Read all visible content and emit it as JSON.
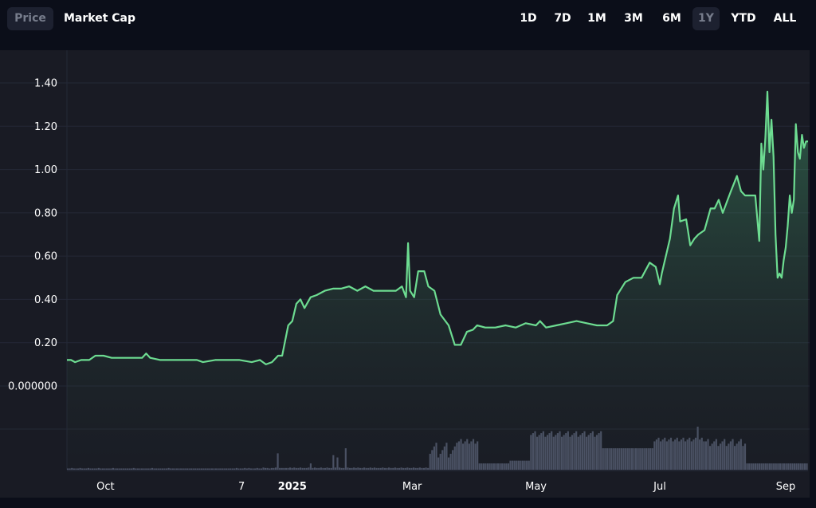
{
  "tabs": {
    "price": "Price",
    "market_cap": "Market Cap"
  },
  "ranges": [
    "1D",
    "7D",
    "1M",
    "3M",
    "6M",
    "1Y",
    "YTD",
    "ALL"
  ],
  "active_range": "1Y",
  "colors": {
    "line": "#6ddc91",
    "background": "#191b24",
    "page": "#0b0e19",
    "volume": "#4c5266",
    "active_tab_bg": "#1d2130"
  },
  "chart_data": {
    "type": "area",
    "title": "",
    "xlabel": "",
    "ylabel": "",
    "ylim": [
      -0.2,
      1.5
    ],
    "yticks": [
      {
        "value": 1.4,
        "label": "1.40"
      },
      {
        "value": 1.2,
        "label": "1.20"
      },
      {
        "value": 1.0,
        "label": "1.00"
      },
      {
        "value": 0.8,
        "label": "0.80"
      },
      {
        "value": 0.6,
        "label": "0.60"
      },
      {
        "value": 0.4,
        "label": "0.40"
      },
      {
        "value": 0.2,
        "label": "0.20"
      },
      {
        "value": 0.0,
        "label": "0.000000"
      }
    ],
    "x_domain": [
      "2024-09-12",
      "2025-09-12"
    ],
    "xticks": [
      {
        "date": "2024-10-01",
        "label": "Oct",
        "bold": false
      },
      {
        "date": "2024-12-07",
        "label": "7",
        "bold": false
      },
      {
        "date": "2025-01-01",
        "label": "2025",
        "bold": true
      },
      {
        "date": "2025-03-01",
        "label": "Mar",
        "bold": false
      },
      {
        "date": "2025-05-01",
        "label": "May",
        "bold": false
      },
      {
        "date": "2025-07-01",
        "label": "Jul",
        "bold": false
      },
      {
        "date": "2025-09-01",
        "label": "Sep",
        "bold": false
      }
    ],
    "grid": true,
    "series": [
      {
        "points": [
          [
            "2024-09-12",
            0.12
          ],
          [
            "2024-09-14",
            0.12
          ],
          [
            "2024-09-16",
            0.11
          ],
          [
            "2024-09-19",
            0.12
          ],
          [
            "2024-09-23",
            0.12
          ],
          [
            "2024-09-26",
            0.14
          ],
          [
            "2024-09-30",
            0.14
          ],
          [
            "2024-10-04",
            0.13
          ],
          [
            "2024-10-08",
            0.13
          ],
          [
            "2024-10-12",
            0.13
          ],
          [
            "2024-10-16",
            0.13
          ],
          [
            "2024-10-19",
            0.13
          ],
          [
            "2024-10-21",
            0.15
          ],
          [
            "2024-10-23",
            0.13
          ],
          [
            "2024-10-28",
            0.12
          ],
          [
            "2024-11-03",
            0.12
          ],
          [
            "2024-11-10",
            0.12
          ],
          [
            "2024-11-15",
            0.12
          ],
          [
            "2024-11-18",
            0.11
          ],
          [
            "2024-11-24",
            0.12
          ],
          [
            "2024-11-30",
            0.12
          ],
          [
            "2024-12-06",
            0.12
          ],
          [
            "2024-12-12",
            0.11
          ],
          [
            "2024-12-16",
            0.12
          ],
          [
            "2024-12-19",
            0.1
          ],
          [
            "2024-12-22",
            0.11
          ],
          [
            "2024-12-25",
            0.14
          ],
          [
            "2024-12-27",
            0.14
          ],
          [
            "2024-12-30",
            0.28
          ],
          [
            "2025-01-01",
            0.3
          ],
          [
            "2025-01-03",
            0.38
          ],
          [
            "2025-01-05",
            0.4
          ],
          [
            "2025-01-07",
            0.36
          ],
          [
            "2025-01-10",
            0.41
          ],
          [
            "2025-01-13",
            0.42
          ],
          [
            "2025-01-17",
            0.44
          ],
          [
            "2025-01-21",
            0.45
          ],
          [
            "2025-01-25",
            0.45
          ],
          [
            "2025-01-29",
            0.46
          ],
          [
            "2025-02-02",
            0.44
          ],
          [
            "2025-02-06",
            0.46
          ],
          [
            "2025-02-10",
            0.44
          ],
          [
            "2025-02-14",
            0.44
          ],
          [
            "2025-02-18",
            0.44
          ],
          [
            "2025-02-21",
            0.44
          ],
          [
            "2025-02-24",
            0.46
          ],
          [
            "2025-02-26",
            0.41
          ],
          [
            "2025-02-27",
            0.66
          ],
          [
            "2025-02-28",
            0.44
          ],
          [
            "2025-03-02",
            0.41
          ],
          [
            "2025-03-04",
            0.53
          ],
          [
            "2025-03-07",
            0.53
          ],
          [
            "2025-03-09",
            0.46
          ],
          [
            "2025-03-12",
            0.44
          ],
          [
            "2025-03-15",
            0.33
          ],
          [
            "2025-03-19",
            0.28
          ],
          [
            "2025-03-22",
            0.19
          ],
          [
            "2025-03-25",
            0.19
          ],
          [
            "2025-03-28",
            0.25
          ],
          [
            "2025-03-31",
            0.26
          ],
          [
            "2025-04-02",
            0.28
          ],
          [
            "2025-04-06",
            0.27
          ],
          [
            "2025-04-11",
            0.27
          ],
          [
            "2025-04-16",
            0.28
          ],
          [
            "2025-04-21",
            0.27
          ],
          [
            "2025-04-26",
            0.29
          ],
          [
            "2025-05-01",
            0.28
          ],
          [
            "2025-05-03",
            0.3
          ],
          [
            "2025-05-06",
            0.27
          ],
          [
            "2025-05-11",
            0.28
          ],
          [
            "2025-05-16",
            0.29
          ],
          [
            "2025-05-21",
            0.3
          ],
          [
            "2025-05-26",
            0.29
          ],
          [
            "2025-05-31",
            0.28
          ],
          [
            "2025-06-05",
            0.28
          ],
          [
            "2025-06-08",
            0.3
          ],
          [
            "2025-06-10",
            0.42
          ],
          [
            "2025-06-14",
            0.48
          ],
          [
            "2025-06-18",
            0.5
          ],
          [
            "2025-06-22",
            0.5
          ],
          [
            "2025-06-26",
            0.57
          ],
          [
            "2025-06-29",
            0.55
          ],
          [
            "2025-07-01",
            0.47
          ],
          [
            "2025-07-02",
            0.52
          ],
          [
            "2025-07-04",
            0.6
          ],
          [
            "2025-07-06",
            0.68
          ],
          [
            "2025-07-08",
            0.82
          ],
          [
            "2025-07-10",
            0.88
          ],
          [
            "2025-07-11",
            0.76
          ],
          [
            "2025-07-14",
            0.77
          ],
          [
            "2025-07-16",
            0.65
          ],
          [
            "2025-07-18",
            0.68
          ],
          [
            "2025-07-20",
            0.7
          ],
          [
            "2025-07-23",
            0.72
          ],
          [
            "2025-07-26",
            0.82
          ],
          [
            "2025-07-28",
            0.82
          ],
          [
            "2025-07-30",
            0.86
          ],
          [
            "2025-08-01",
            0.8
          ],
          [
            "2025-08-03",
            0.85
          ],
          [
            "2025-08-05",
            0.9
          ],
          [
            "2025-08-08",
            0.97
          ],
          [
            "2025-08-10",
            0.9
          ],
          [
            "2025-08-12",
            0.88
          ],
          [
            "2025-08-15",
            0.88
          ],
          [
            "2025-08-17",
            0.88
          ],
          [
            "2025-08-19",
            0.67
          ],
          [
            "2025-08-20",
            1.12
          ],
          [
            "2025-08-21",
            1.0
          ],
          [
            "2025-08-22",
            1.15
          ],
          [
            "2025-08-23",
            1.36
          ],
          [
            "2025-08-24",
            1.08
          ],
          [
            "2025-08-25",
            1.23
          ],
          [
            "2025-08-26",
            1.06
          ],
          [
            "2025-08-27",
            0.7
          ],
          [
            "2025-08-28",
            0.5
          ],
          [
            "2025-08-29",
            0.52
          ],
          [
            "2025-08-30",
            0.5
          ],
          [
            "2025-08-31",
            0.58
          ],
          [
            "2025-09-01",
            0.64
          ],
          [
            "2025-09-02",
            0.74
          ],
          [
            "2025-09-03",
            0.88
          ],
          [
            "2025-09-04",
            0.8
          ],
          [
            "2025-09-05",
            0.86
          ],
          [
            "2025-09-06",
            1.21
          ],
          [
            "2025-09-07",
            1.08
          ],
          [
            "2025-09-08",
            1.05
          ],
          [
            "2025-09-09",
            1.16
          ],
          [
            "2025-09-10",
            1.1
          ],
          [
            "2025-09-11",
            1.13
          ],
          [
            "2025-09-12",
            1.13
          ]
        ]
      }
    ],
    "volume_bars": [
      0.01,
      0.01,
      0.02,
      0.01,
      0.01,
      0.01,
      0.02,
      0.01,
      0.01,
      0.01,
      0.02,
      0.01,
      0.01,
      0.01,
      0.01,
      0.02,
      0.01,
      0.01,
      0.01,
      0.01,
      0.01,
      0.01,
      0.02,
      0.01,
      0.01,
      0.01,
      0.01,
      0.01,
      0.01,
      0.01,
      0.01,
      0.01,
      0.02,
      0.01,
      0.01,
      0.01,
      0.01,
      0.01,
      0.01,
      0.01,
      0.01,
      0.02,
      0.01,
      0.01,
      0.01,
      0.01,
      0.01,
      0.01,
      0.01,
      0.02,
      0.01,
      0.01,
      0.01,
      0.01,
      0.01,
      0.01,
      0.01,
      0.01,
      0.01,
      0.01,
      0.01,
      0.01,
      0.01,
      0.01,
      0.01,
      0.01,
      0.01,
      0.01,
      0.01,
      0.01,
      0.01,
      0.01,
      0.01,
      0.01,
      0.01,
      0.01,
      0.01,
      0.01,
      0.01,
      0.01,
      0.01,
      0.01,
      0.02,
      0.01,
      0.01,
      0.01,
      0.02,
      0.01,
      0.02,
      0.01,
      0.01,
      0.01,
      0.02,
      0.01,
      0.01,
      0.03,
      0.02,
      0.02,
      0.01,
      0.02,
      0.02,
      0.03,
      0.02,
      0.02,
      0.02,
      0.02,
      0.02,
      0.02,
      0.03,
      0.02,
      0.03,
      0.02,
      0.02,
      0.03,
      0.02,
      0.02,
      0.02,
      0.03,
      0.02,
      0.02,
      0.03,
      0.02,
      0.02,
      0.03,
      0.02,
      0.02,
      0.03,
      0.02,
      0.02,
      0.02,
      0.03,
      0.02,
      0.03,
      0.02,
      0.02,
      0.02,
      0.03,
      0.02,
      0.02,
      0.03,
      0.02,
      0.03,
      0.02,
      0.02,
      0.03,
      0.02,
      0.02,
      0.03,
      0.02,
      0.03,
      0.02,
      0.02,
      0.02,
      0.03,
      0.02,
      0.02,
      0.03,
      0.02,
      0.02,
      0.03,
      0.02,
      0.02,
      0.03,
      0.02,
      0.02,
      0.03,
      0.02,
      0.02,
      0.03,
      0.02,
      0.02,
      0.03,
      0.02,
      0.02,
      0.03,
      0.02,
      0.02,
      0.03,
      0.02,
      0.02,
      0.03,
      0.02,
      0.03,
      0.02,
      0.02,
      0.03,
      0.02,
      0.02,
      0.03,
      0.02,
      0.02,
      0.03,
      0.02,
      0.03,
      0.02,
      0.02,
      0.03,
      0.02,
      0.02,
      0.03,
      0.02,
      0.02,
      0.03,
      0.02,
      0.02,
      0.03,
      0.02,
      0.02,
      0.03,
      0.02,
      0.02,
      0.03,
      0.02,
      0.02,
      0.03,
      0.02,
      0.02,
      0.02,
      0.03,
      0.02,
      0.02,
      0.03,
      0.02,
      0.02,
      0.03,
      0.02,
      0.02,
      0.03,
      0.02,
      0.02,
      0.03,
      0.02,
      0.03,
      0.02,
      0.02,
      0.03,
      0.02,
      0.02,
      0.03,
      0.02,
      0.02,
      0.03,
      0.02,
      0.02,
      0.03,
      0.02,
      0.02,
      0.03,
      0.02,
      0.02,
      0.03,
      0.02,
      0.02,
      0.03,
      0.02,
      0.02,
      0.03,
      0.02,
      0.02,
      0.03,
      0.02,
      0.03,
      0.02,
      0.02,
      0.03,
      0.02,
      0.02,
      0.03,
      0.02,
      0.02,
      0.03,
      0.02,
      0.02,
      0.03,
      0.02,
      0.02,
      0.03,
      0.02,
      0.02,
      0.03,
      0.02,
      0.02,
      0.03,
      0.02,
      0.02,
      0.03,
      0.02,
      0.02,
      0.03,
      0.02,
      0.02,
      0.03,
      0.02,
      0.02,
      0.03,
      0.02,
      0.02,
      0.03,
      0.02,
      0.02,
      0.03,
      0.02,
      0.02,
      0.03,
      0.02,
      0.02,
      0.03,
      0.02,
      0.02,
      0.03,
      0.02,
      0.02,
      0.03,
      0.02,
      0.02,
      0.03,
      0.02,
      0.02,
      0.03,
      0.02,
      0.02,
      0.03,
      0.02,
      0.02,
      0.03,
      0.02,
      0.02,
      0.03,
      0.02,
      0.02,
      0.03,
      0.02,
      0.02,
      0.03,
      0.02,
      0.02,
      0.03,
      0.02,
      0.02,
      0.03,
      0.02,
      0.02,
      0.03,
      0.02,
      0.02,
      0.03,
      0.02,
      0.02,
      0.03,
      0.02,
      0.02,
      0.03,
      0.02,
      0.02,
      0.03,
      0.02,
      0.02,
      0.03,
      0.02,
      0.02
    ]
  }
}
